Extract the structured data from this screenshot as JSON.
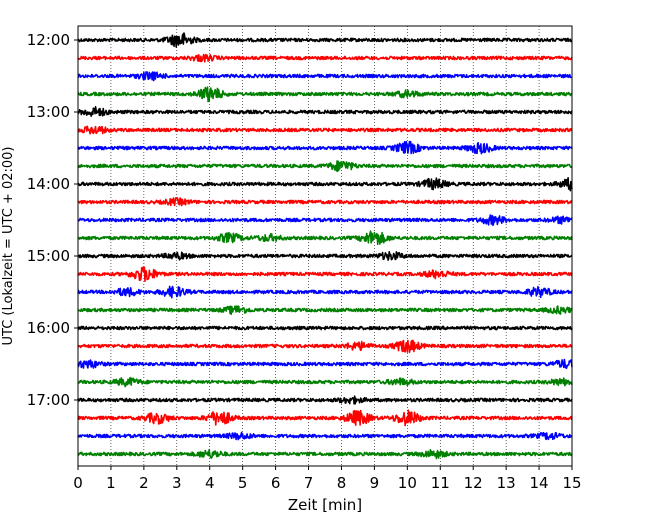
{
  "chart_data": {
    "type": "line",
    "title": "",
    "xlabel": "Zeit  [min]",
    "ylabel": "UTC (Lokalzeit = UTC + 02:00)",
    "xlim": [
      0,
      15
    ],
    "x_ticks": [
      "0",
      "1",
      "2",
      "3",
      "4",
      "5",
      "6",
      "7",
      "8",
      "9",
      "10",
      "11",
      "12",
      "13",
      "14",
      "15"
    ],
    "y_ticks": [
      "12:00",
      "13:00",
      "14:00",
      "15:00",
      "16:00",
      "17:00"
    ],
    "grid": "vertical dotted",
    "trace_interval_min": 15,
    "color_cycle": [
      "#000000",
      "#ff0000",
      "#0000ff",
      "#008000"
    ],
    "series": [
      {
        "start": "12:00",
        "color": "#000000",
        "events": [
          [
            3.1,
            1.0
          ]
        ]
      },
      {
        "start": "12:15",
        "color": "#ff0000",
        "events": [
          [
            3.8,
            0.4
          ]
        ]
      },
      {
        "start": "12:30",
        "color": "#0000ff",
        "events": [
          [
            2.2,
            0.5
          ]
        ]
      },
      {
        "start": "12:45",
        "color": "#008000",
        "events": [
          [
            4.0,
            1.0
          ],
          [
            10.0,
            0.4
          ]
        ]
      },
      {
        "start": "13:00",
        "color": "#000000",
        "events": [
          [
            0.5,
            0.6
          ]
        ]
      },
      {
        "start": "13:15",
        "color": "#ff0000",
        "events": [
          [
            0.5,
            0.5
          ]
        ]
      },
      {
        "start": "13:30",
        "color": "#0000ff",
        "events": [
          [
            10.0,
            0.8
          ],
          [
            12.2,
            0.7
          ]
        ]
      },
      {
        "start": "13:45",
        "color": "#008000",
        "events": [
          [
            8.0,
            0.7
          ]
        ]
      },
      {
        "start": "14:00",
        "color": "#000000",
        "events": [
          [
            10.8,
            0.7
          ],
          [
            15.0,
            0.8
          ]
        ]
      },
      {
        "start": "14:15",
        "color": "#ff0000",
        "events": [
          [
            3.0,
            0.4
          ]
        ]
      },
      {
        "start": "14:30",
        "color": "#0000ff",
        "events": [
          [
            12.6,
            0.6
          ],
          [
            14.7,
            0.4
          ]
        ]
      },
      {
        "start": "14:45",
        "color": "#008000",
        "events": [
          [
            9.0,
            1.0
          ],
          [
            4.6,
            0.6
          ],
          [
            5.8,
            0.4
          ]
        ]
      },
      {
        "start": "15:00",
        "color": "#000000",
        "events": [
          [
            9.5,
            0.5
          ],
          [
            3.0,
            0.4
          ]
        ]
      },
      {
        "start": "15:15",
        "color": "#ff0000",
        "events": [
          [
            2.0,
            1.0
          ],
          [
            10.9,
            0.5
          ]
        ]
      },
      {
        "start": "15:30",
        "color": "#0000ff",
        "events": [
          [
            2.9,
            0.7
          ],
          [
            1.5,
            0.5
          ],
          [
            14.0,
            0.6
          ]
        ]
      },
      {
        "start": "15:45",
        "color": "#008000",
        "events": [
          [
            4.8,
            0.5
          ],
          [
            14.6,
            0.4
          ]
        ]
      },
      {
        "start": "16:00",
        "color": "#000000",
        "events": []
      },
      {
        "start": "16:15",
        "color": "#ff0000",
        "events": [
          [
            10.0,
            0.9
          ],
          [
            8.5,
            0.5
          ]
        ]
      },
      {
        "start": "16:30",
        "color": "#0000ff",
        "events": [
          [
            0.3,
            0.5
          ],
          [
            14.8,
            0.5
          ]
        ]
      },
      {
        "start": "16:45",
        "color": "#008000",
        "events": [
          [
            1.5,
            0.5
          ],
          [
            9.8,
            0.4
          ],
          [
            14.7,
            0.4
          ]
        ]
      },
      {
        "start": "17:00",
        "color": "#000000",
        "events": [
          [
            8.3,
            0.4
          ]
        ]
      },
      {
        "start": "17:15",
        "color": "#ff0000",
        "events": [
          [
            4.3,
            1.0
          ],
          [
            8.5,
            1.0
          ],
          [
            10.0,
            1.0
          ],
          [
            2.4,
            0.7
          ]
        ]
      },
      {
        "start": "17:30",
        "color": "#0000ff",
        "events": [
          [
            4.9,
            0.4
          ],
          [
            14.3,
            0.4
          ]
        ]
      },
      {
        "start": "17:45",
        "color": "#008000",
        "events": [
          [
            4.0,
            0.5
          ],
          [
            10.8,
            0.5
          ]
        ]
      }
    ]
  }
}
